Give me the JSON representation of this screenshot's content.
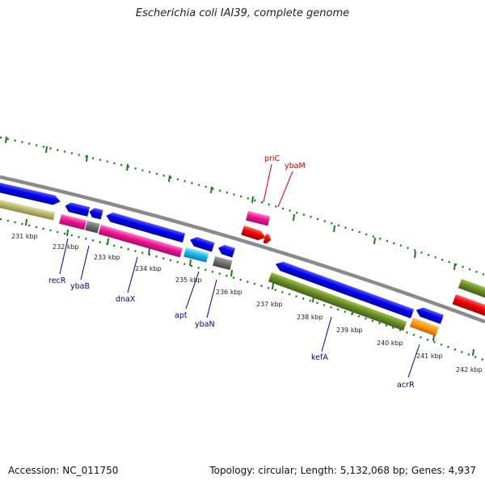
{
  "title": "Escherichia coli IAI39, complete genome",
  "footer": {
    "accession": "Accession: NC_011750",
    "topology": "Topology: circular; Length: 5,132,068 bp; Genes: 4,937"
  },
  "colors": {
    "backbone": "#8a8a8a",
    "tick": "#1a7a1a",
    "forward_label": "#cc0000",
    "reverse_label": "#000099"
  },
  "tick_labels": [
    "231 kbp",
    "232 kbp",
    "233 kbp",
    "234 kbp",
    "235 kbp",
    "236 kbp",
    "237 kbp",
    "238 kbp",
    "239 kbp",
    "240 kbp",
    "241 kbp",
    "242 kbp"
  ],
  "forward_gene_labels": [
    "priC",
    "ybaM"
  ],
  "reverse_gene_labels": [
    "recR",
    "ybaB",
    "dnaX",
    "apt",
    "ybaN",
    "kefA",
    "acrR"
  ]
}
